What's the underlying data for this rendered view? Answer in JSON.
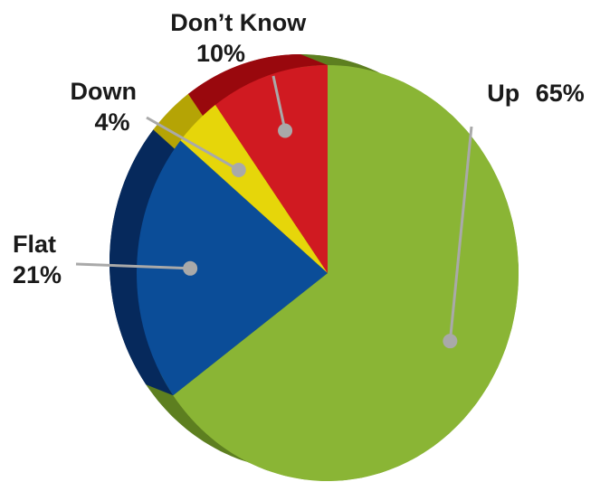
{
  "chart_data": {
    "type": "pie",
    "title": "",
    "slices": [
      {
        "label": "Up",
        "value_text": "65%",
        "value": 65,
        "color": "#8ab535",
        "side_color": "#5d7f20"
      },
      {
        "label": "Flat",
        "value_text": "21%",
        "value": 21,
        "color": "#0b4d98",
        "side_color": "#06295c"
      },
      {
        "label": "Down",
        "value_text": "4%",
        "value": 4,
        "color": "#e6d60a",
        "side_color": "#b5a405"
      },
      {
        "label": "Don’t Know",
        "value_text": "10%",
        "value": 10,
        "color": "#d01a21",
        "side_color": "#99080d"
      }
    ],
    "leader_color": "#a9a9a9"
  }
}
